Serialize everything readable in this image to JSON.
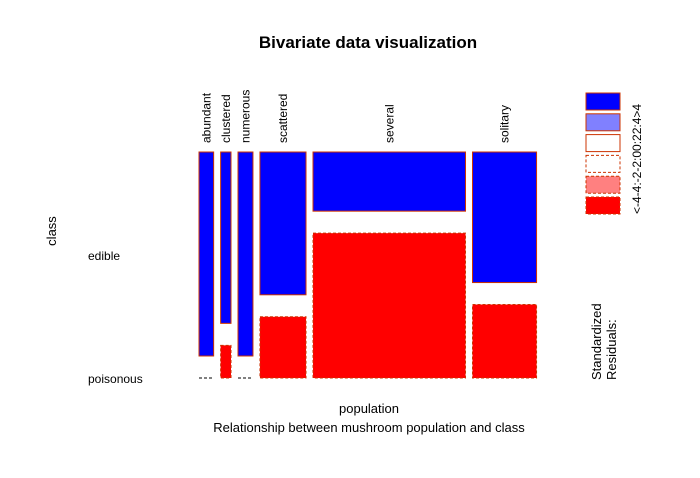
{
  "chart_data": {
    "type": "mosaic",
    "title": "Bivariate data visualization",
    "xlabel": "population",
    "ylabel": "class",
    "subtitle": "Relationship between mushroom population and class",
    "x_variable_levels": [
      "abundant",
      "clustered",
      "numerous",
      "scattered",
      "several",
      "solitary"
    ],
    "y_variable_levels": [
      "edible",
      "poisonous"
    ],
    "column_widths": [
      0.048,
      0.034,
      0.049,
      0.151,
      0.5,
      0.21
    ],
    "edible_fraction": [
      1.0,
      0.84,
      1.0,
      0.7,
      0.29,
      0.64
    ],
    "cell_shading": {
      "edible": [
        "blue",
        "blue",
        "blue",
        "blue",
        "blue",
        "blue"
      ],
      "poisonous": [
        "empty",
        "red",
        "empty",
        "red",
        "red",
        "red"
      ]
    },
    "legend": {
      "title": "Standardized\nResiduals:",
      "labels": [
        "<-4",
        "-4:-2",
        "-2:0",
        "0:2",
        "2:4",
        ">4"
      ],
      "colors": [
        "#ff0000",
        "#ff8080",
        "#ffffff",
        "#ffffff",
        "#8080ff",
        "#0000ff"
      ],
      "borders": [
        "#cc3300",
        "#cc3300",
        "#cc3300",
        "#cc3300",
        "#cc3300",
        "#cc3300"
      ],
      "dashed": [
        true,
        true,
        true,
        false,
        false,
        false
      ]
    }
  }
}
